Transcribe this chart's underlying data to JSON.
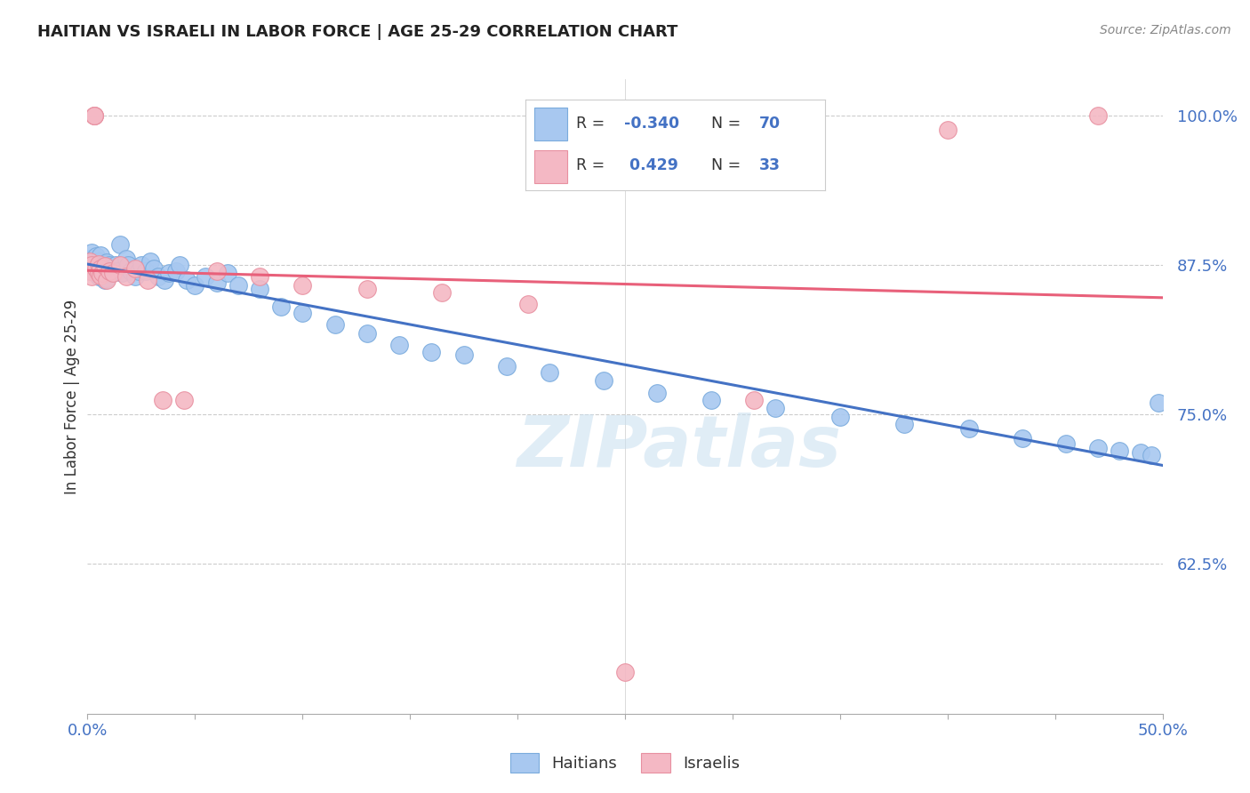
{
  "title": "HAITIAN VS ISRAELI IN LABOR FORCE | AGE 25-29 CORRELATION CHART",
  "source": "Source: ZipAtlas.com",
  "ylabel": "In Labor Force | Age 25-29",
  "xlim": [
    0.0,
    0.5
  ],
  "ylim": [
    0.5,
    1.03
  ],
  "yticks": [
    0.625,
    0.75,
    0.875,
    1.0
  ],
  "ytick_labels": [
    "62.5%",
    "75.0%",
    "87.5%",
    "100.0%"
  ],
  "xticks": [
    0.0,
    0.05,
    0.1,
    0.15,
    0.2,
    0.25,
    0.3,
    0.35,
    0.4,
    0.45,
    0.5
  ],
  "xtick_labels": [
    "0.0%",
    "",
    "",
    "",
    "",
    "",
    "",
    "",
    "",
    "",
    "50.0%"
  ],
  "blue_color": "#a8c8f0",
  "blue_edge_color": "#7aabdd",
  "blue_line_color": "#4472c4",
  "pink_color": "#f4b8c4",
  "pink_edge_color": "#e890a0",
  "pink_line_color": "#e8607a",
  "r_blue": -0.34,
  "n_blue": 70,
  "r_pink": 0.429,
  "n_pink": 33,
  "watermark": "ZIPatlas",
  "haitians_x": [
    0.001,
    0.001,
    0.002,
    0.002,
    0.003,
    0.003,
    0.004,
    0.004,
    0.005,
    0.005,
    0.006,
    0.006,
    0.007,
    0.007,
    0.008,
    0.008,
    0.009,
    0.009,
    0.01,
    0.01,
    0.011,
    0.012,
    0.013,
    0.014,
    0.015,
    0.016,
    0.018,
    0.019,
    0.02,
    0.022,
    0.024,
    0.025,
    0.027,
    0.029,
    0.031,
    0.033,
    0.036,
    0.038,
    0.041,
    0.043,
    0.046,
    0.05,
    0.055,
    0.06,
    0.065,
    0.07,
    0.08,
    0.09,
    0.1,
    0.115,
    0.13,
    0.145,
    0.16,
    0.175,
    0.195,
    0.215,
    0.24,
    0.265,
    0.29,
    0.32,
    0.35,
    0.38,
    0.41,
    0.435,
    0.455,
    0.47,
    0.48,
    0.49,
    0.495,
    0.498
  ],
  "haitians_y": [
    0.88,
    0.875,
    0.885,
    0.87,
    0.88,
    0.87,
    0.882,
    0.868,
    0.878,
    0.865,
    0.883,
    0.872,
    0.875,
    0.868,
    0.876,
    0.862,
    0.877,
    0.864,
    0.875,
    0.87,
    0.868,
    0.872,
    0.875,
    0.87,
    0.892,
    0.868,
    0.88,
    0.875,
    0.87,
    0.865,
    0.87,
    0.875,
    0.87,
    0.878,
    0.872,
    0.865,
    0.862,
    0.868,
    0.87,
    0.875,
    0.862,
    0.858,
    0.865,
    0.86,
    0.868,
    0.858,
    0.855,
    0.84,
    0.835,
    0.825,
    0.818,
    0.808,
    0.802,
    0.8,
    0.79,
    0.785,
    0.778,
    0.768,
    0.762,
    0.755,
    0.748,
    0.742,
    0.738,
    0.73,
    0.726,
    0.722,
    0.72,
    0.718,
    0.716,
    0.76
  ],
  "israelis_x": [
    0.001,
    0.001,
    0.002,
    0.002,
    0.003,
    0.003,
    0.003,
    0.004,
    0.005,
    0.005,
    0.006,
    0.006,
    0.007,
    0.008,
    0.009,
    0.01,
    0.012,
    0.015,
    0.018,
    0.022,
    0.028,
    0.035,
    0.045,
    0.06,
    0.08,
    0.1,
    0.13,
    0.165,
    0.205,
    0.25,
    0.31,
    0.4,
    0.47
  ],
  "israelis_y": [
    0.878,
    0.87,
    0.875,
    0.865,
    1.0,
    1.0,
    1.0,
    0.872,
    0.876,
    0.868,
    0.872,
    0.866,
    0.868,
    0.874,
    0.862,
    0.87,
    0.868,
    0.875,
    0.865,
    0.872,
    0.862,
    0.762,
    0.762,
    0.87,
    0.865,
    0.858,
    0.855,
    0.852,
    0.842,
    0.535,
    0.762,
    0.988,
    1.0
  ]
}
